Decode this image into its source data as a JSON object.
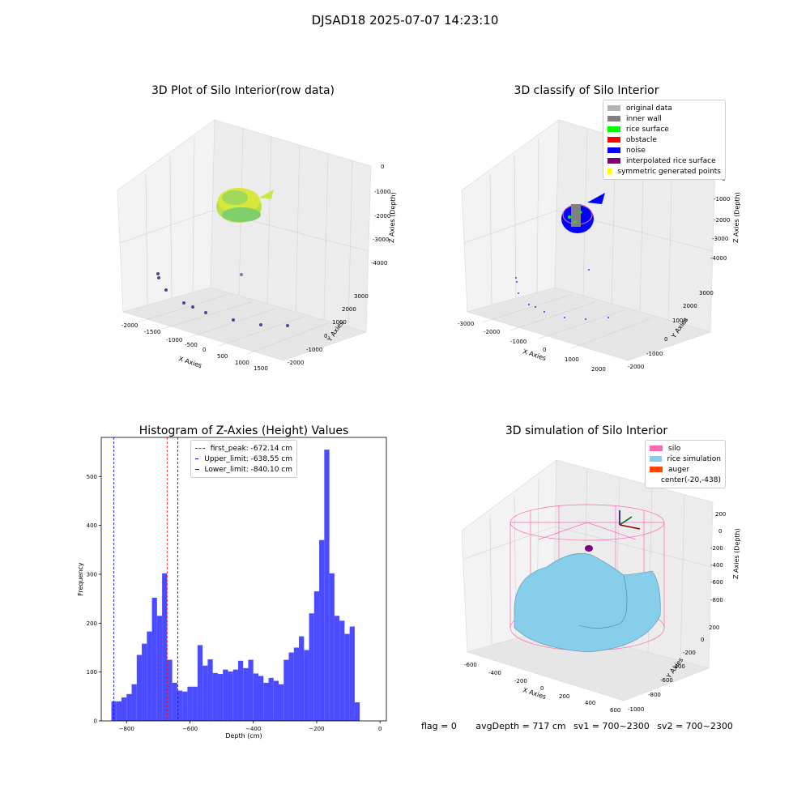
{
  "suptitle": "DJSAD18 2025-07-07 14:23:10",
  "colors": {
    "original": "#b4b4b4",
    "inner_wall": "#808080",
    "rice_surface": "#00ff00",
    "obstacle": "#ff0000",
    "noise": "#0000ff",
    "interp": "#800080",
    "symmetric": "#ffff00",
    "silo": "#ff69b4",
    "rice_sim": "#87ceeb",
    "auger": "#ff4500",
    "hist": "#4b4bff"
  },
  "panel_raw": {
    "title": "3D Plot of Silo Interior(row data)",
    "x_label": "X Axies",
    "y_label": "Y Axies",
    "z_label": "Z Axies (Depth)",
    "x_ticks": [
      "-2000",
      "-1500",
      "-1000",
      "-500",
      "0",
      "500",
      "1000",
      "1500"
    ],
    "y_ticks": [
      "-2000",
      "-1000",
      "0",
      "1000",
      "2000",
      "3000"
    ],
    "z_ticks": [
      "0",
      "-1000",
      "-2000",
      "-3000",
      "-4000"
    ]
  },
  "panel_classify": {
    "title": "3D classify of Silo Interior",
    "x_label": "X Axies",
    "y_label": "Y Axies",
    "z_label": "Z Axies (Depth)",
    "x_ticks": [
      "-3000",
      "-2000",
      "-1000",
      "0",
      "1000",
      "2000"
    ],
    "y_ticks": [
      "-2000",
      "-1000",
      "0",
      "1000",
      "2000",
      "3000"
    ],
    "z_ticks": [
      "0",
      "-1000",
      "-2000",
      "-3000",
      "-4000"
    ],
    "legend": [
      "original data",
      "inner wall",
      "rice surface",
      "obstacle",
      "noise",
      "interpolated rice surface",
      "symmetric generated points"
    ]
  },
  "panel_sim": {
    "title": "3D simulation of Silo Interior",
    "x_label": "X Axies",
    "y_label": "Y Axies",
    "z_label": "Z Axies (Depth)",
    "x_ticks": [
      "-600",
      "-400",
      "-200",
      "0",
      "200",
      "400",
      "600"
    ],
    "y_ticks": [
      "200",
      "0",
      "-200",
      "-400",
      "-600",
      "-800",
      "-1000"
    ],
    "z_ticks": [
      "200",
      "0",
      "-200",
      "-400",
      "-600",
      "-800"
    ],
    "legend": [
      "silo",
      "rice simulation",
      "auger",
      "center(-20,-438)"
    ]
  },
  "chart_data": {
    "type": "bar",
    "title": "Histogram of Z-Axies (Height) Values",
    "xlabel": "Depth (cm)",
    "ylabel": "Frequency",
    "xlim": [
      -880,
      20
    ],
    "ylim": [
      0,
      580
    ],
    "x_ticks": [
      -800,
      -600,
      -400,
      -200,
      0
    ],
    "y_ticks": [
      0,
      100,
      200,
      300,
      400,
      500
    ],
    "bin_start": -848,
    "bin_width": 16,
    "values": [
      40,
      40,
      48,
      55,
      75,
      135,
      158,
      183,
      252,
      215,
      302,
      125,
      78,
      62,
      60,
      70,
      70,
      155,
      113,
      126,
      98,
      96,
      105,
      101,
      105,
      123,
      108,
      125,
      97,
      92,
      78,
      88,
      82,
      75,
      125,
      140,
      150,
      173,
      145,
      220,
      265,
      370,
      555,
      302,
      215,
      205,
      178,
      193,
      38
    ],
    "lines": [
      {
        "name": "first_peak: -672.14 cm",
        "x": -672.14,
        "color": "#ff0000"
      },
      {
        "name": "Upper_limit: -638.55 cm",
        "x": -638.55,
        "color": "#0000ff"
      },
      {
        "name": "Lower_limit: -840.10 cm",
        "x": -840.1,
        "color": "#0000ff"
      }
    ],
    "legend_position": "upper center"
  },
  "status": {
    "flag": "flag = 0",
    "avg": "avgDepth = 717 cm",
    "sv1": "sv1 = 700~2300",
    "sv2": "sv2 = 700~2300"
  }
}
